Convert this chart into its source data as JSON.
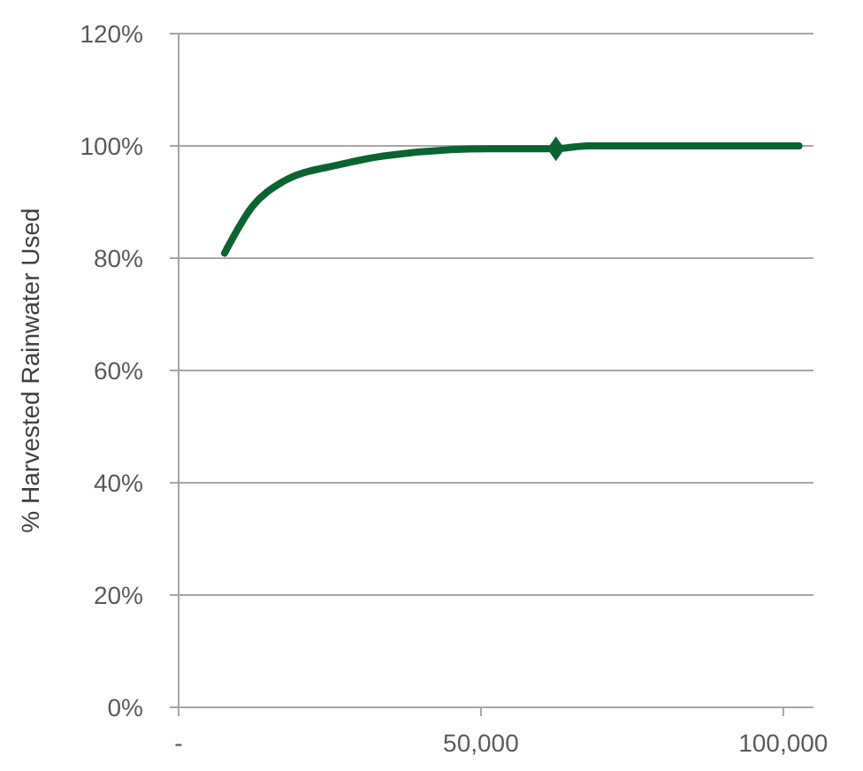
{
  "chart_data": {
    "type": "line",
    "ylabel": "% Harvested Rainwater Used",
    "xlim": [
      0,
      105000
    ],
    "xticks": [
      {
        "value": 0,
        "label": "-"
      },
      {
        "value": 50000,
        "label": "50,000"
      },
      {
        "value": 100000,
        "label": "100,000"
      }
    ],
    "ylim": [
      0,
      120
    ],
    "yticks": [
      {
        "value": 0,
        "label": "0%"
      },
      {
        "value": 20,
        "label": "20%"
      },
      {
        "value": 40,
        "label": "40%"
      },
      {
        "value": 60,
        "label": "60%"
      },
      {
        "value": 80,
        "label": "80%"
      },
      {
        "value": 100,
        "label": "100%"
      },
      {
        "value": 120,
        "label": "120%"
      }
    ],
    "grid": "y",
    "line_style": "solid",
    "marker": "none",
    "series": [
      {
        "color": "#0b6430",
        "x": [
          7600,
          12200,
          17200,
          26800,
          33800,
          51300,
          62400,
          67600,
          102600
        ],
        "values": [
          80.9,
          89.2,
          93.6,
          96.7,
          98.2,
          99.5,
          99.5,
          100,
          100
        ]
      },
      {
        "type": "scatter",
        "marker": "diamond",
        "color": "#0b6430",
        "x": [
          62400
        ],
        "values": [
          99.5
        ]
      }
    ]
  }
}
